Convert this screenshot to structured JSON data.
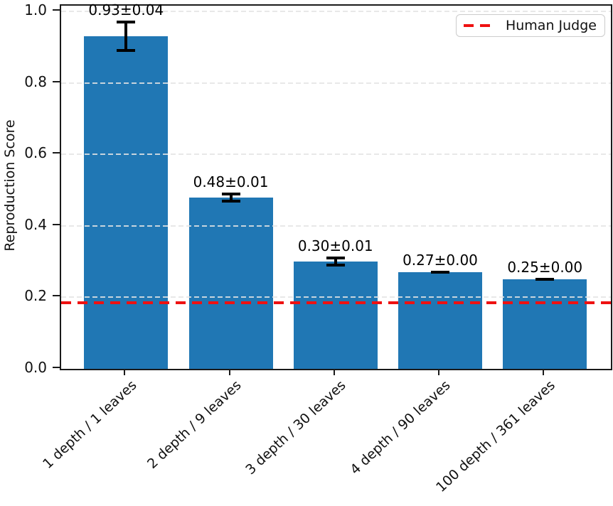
{
  "chart_data": {
    "type": "bar",
    "title": "",
    "xlabel": "",
    "ylabel": "Reproduction Score",
    "categories": [
      "1 depth / 1 leaves",
      "2 depth / 9 leaves",
      "3 depth / 30 leaves",
      "4 depth / 90 leaves",
      "100 depth / 361 leaves"
    ],
    "values": [
      0.93,
      0.48,
      0.3,
      0.27,
      0.25
    ],
    "errors": [
      0.04,
      0.01,
      0.01,
      0.0,
      0.0
    ],
    "bar_labels": [
      "0.93±0.04",
      "0.48±0.01",
      "0.30±0.01",
      "0.27±0.00",
      "0.25±0.00"
    ],
    "ylim": [
      0.0,
      1.016
    ],
    "yticks": [
      0.0,
      0.2,
      0.4,
      0.6,
      0.8,
      1.0
    ],
    "ytick_labels": [
      "0.0",
      "0.2",
      "0.4",
      "0.6",
      "0.8",
      "1.0"
    ],
    "grid": "horizontal-dashed",
    "grid_color": "#e8e8e8",
    "bar_color": "#2077b4",
    "error_bar_color": "#000000",
    "reference_line": {
      "value": 0.185,
      "label": "Human Judge",
      "color": "#ee1111",
      "style": "dashed"
    },
    "legend": {
      "position": "upper right",
      "entries": [
        {
          "label": "Human Judge",
          "color": "#ee1111",
          "style": "dashed"
        }
      ]
    }
  }
}
